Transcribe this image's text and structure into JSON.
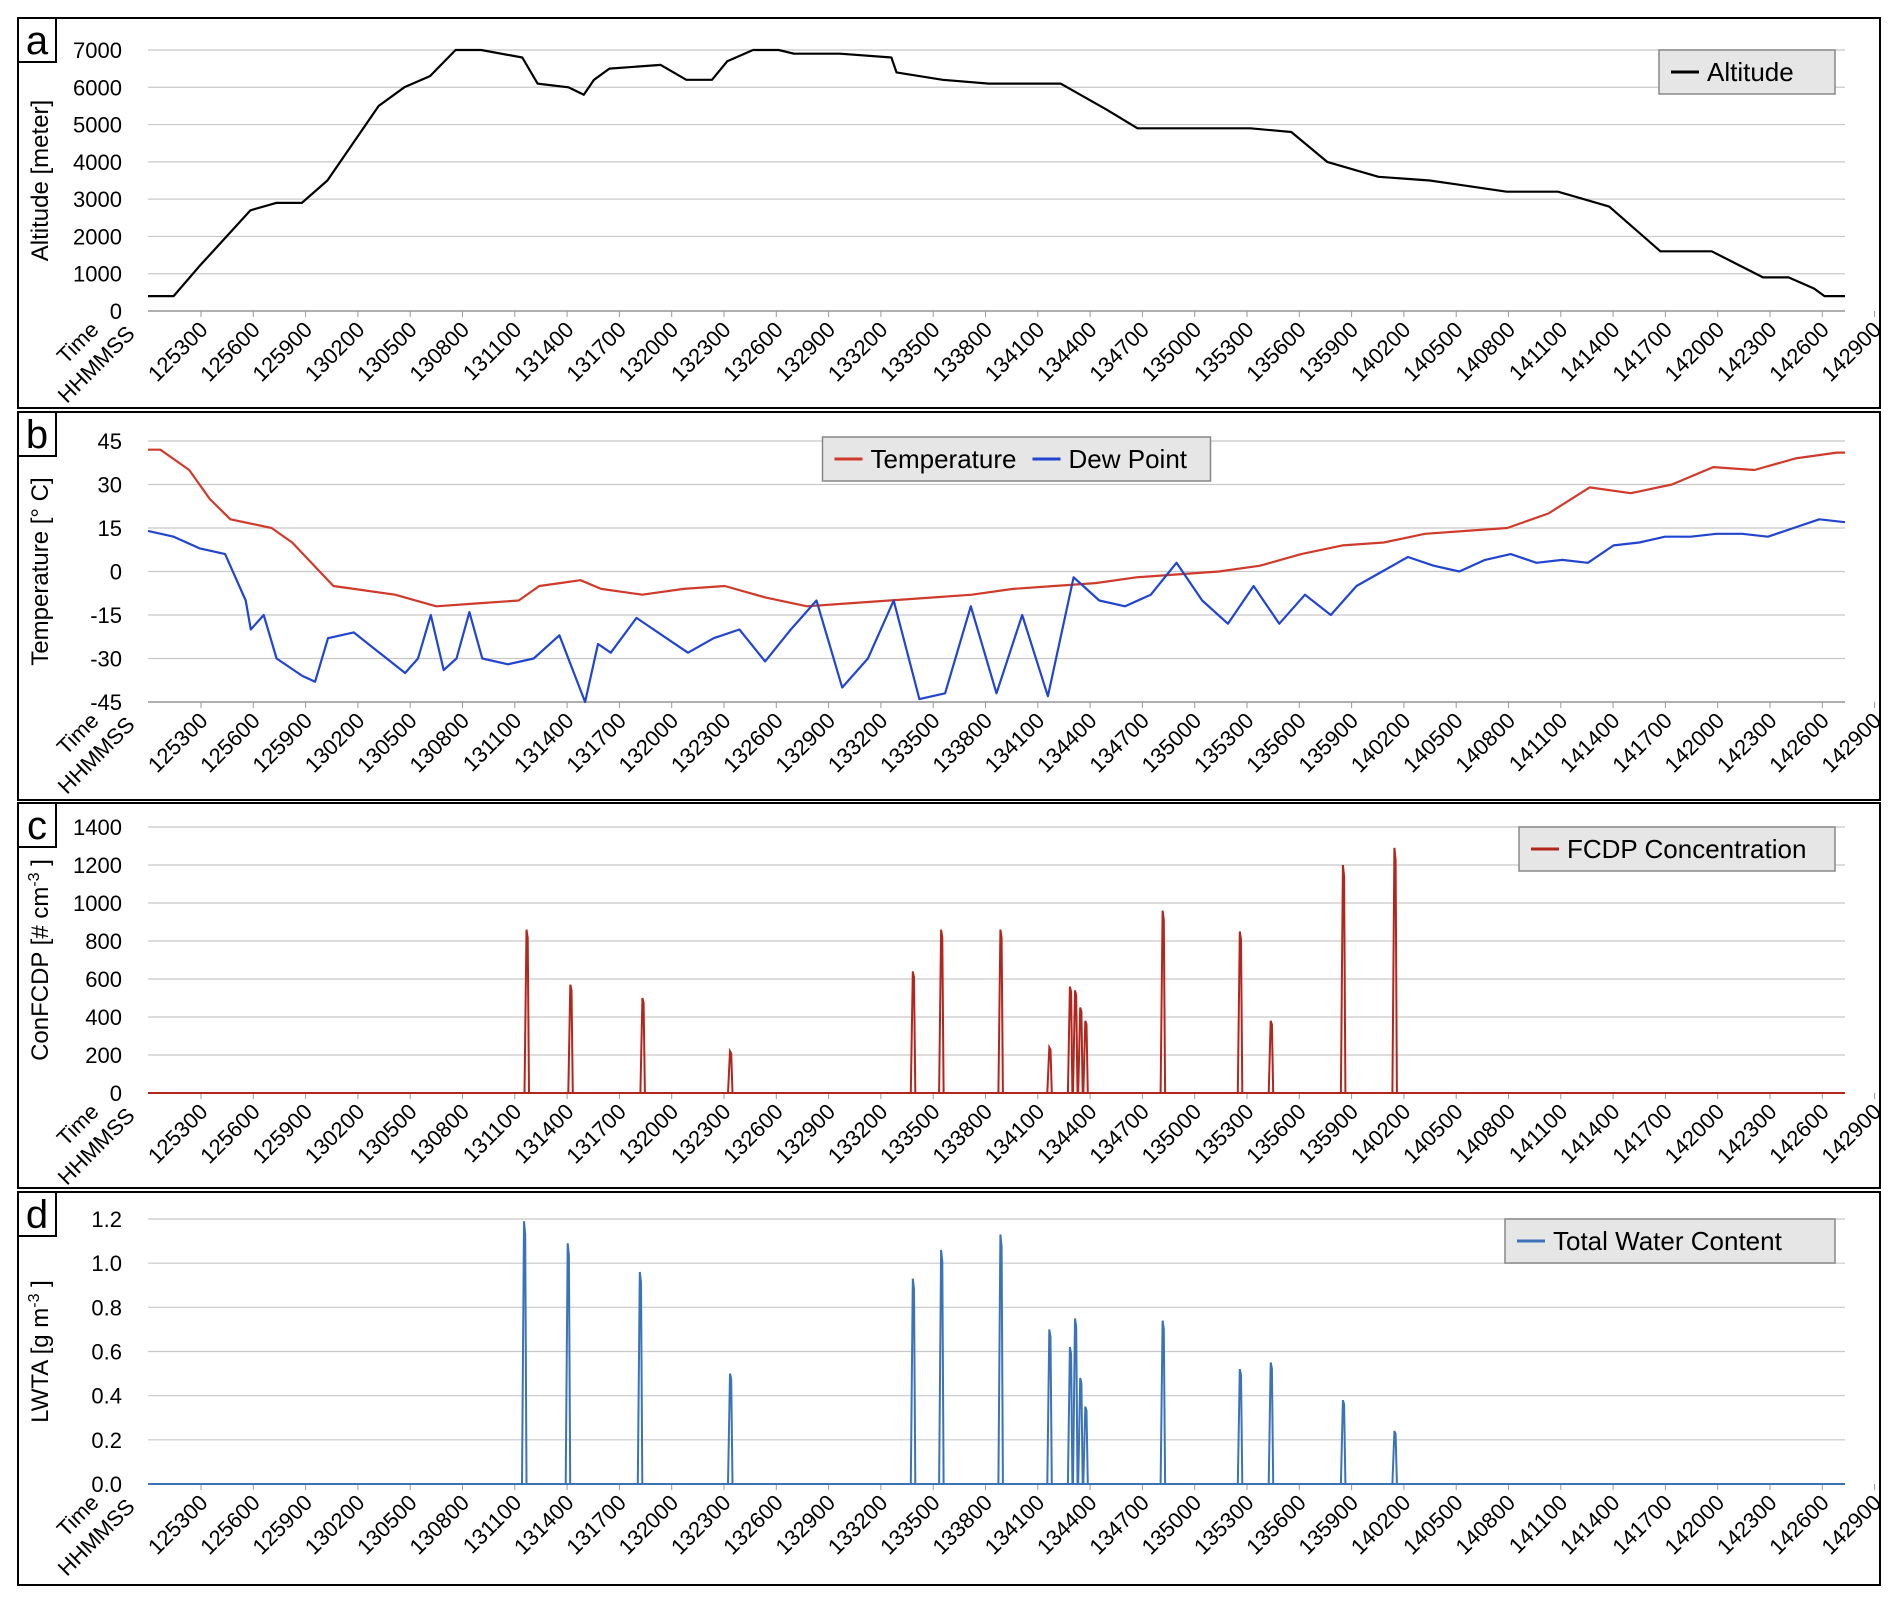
{
  "time_axis": {
    "labels": [
      "125300",
      "125600",
      "125900",
      "130200",
      "130500",
      "130800",
      "131100",
      "131400",
      "131700",
      "132000",
      "132300",
      "132600",
      "132900",
      "133200",
      "133500",
      "133800",
      "134100",
      "134400",
      "134700",
      "135000",
      "135300",
      "135600",
      "135900",
      "140200",
      "140500",
      "140800",
      "141100",
      "141400",
      "141700",
      "142000",
      "142300",
      "142600",
      "142900"
    ],
    "prefix_line1": "Time",
    "prefix_line2": "HHMMSS"
  },
  "panels": [
    {
      "letter": "a",
      "ylabel": "Altitude  [meter]",
      "ylabel_sup": "",
      "ylabel_after": "",
      "legend": [
        "Altitude"
      ]
    },
    {
      "letter": "b",
      "ylabel": "Temperature  [° C]",
      "ylabel_sup": "",
      "ylabel_after": "",
      "legend": [
        "Temperature",
        "Dew Point"
      ]
    },
    {
      "letter": "c",
      "ylabel": "ConFCDP  [# cm",
      "ylabel_sup": "-3",
      "ylabel_after": " ]",
      "legend": [
        "FCDP Concentration"
      ]
    },
    {
      "letter": "d",
      "ylabel": "LWTA  [g m",
      "ylabel_sup": "-3",
      "ylabel_after": " ]",
      "legend": [
        "Total Water Content"
      ]
    }
  ],
  "chart_data": [
    {
      "type": "line",
      "ylabel": "Altitude  [meter]",
      "ylim": [
        0,
        7000
      ],
      "yticks": [
        "0",
        "1000",
        "2000",
        "3000",
        "4000",
        "5000",
        "6000",
        "7000"
      ],
      "grid": true,
      "legend_position": "top-right",
      "series": [
        {
          "name": "Altitude",
          "color": "#000000",
          "points": [
            [
              0,
              400
            ],
            [
              0.5,
              400
            ],
            [
              1,
              1200
            ],
            [
              2,
              2700
            ],
            [
              2.5,
              2900
            ],
            [
              3,
              2900
            ],
            [
              3.5,
              3500
            ],
            [
              4.5,
              5500
            ],
            [
              5,
              6000
            ],
            [
              5.5,
              6300
            ],
            [
              6,
              7000
            ],
            [
              6.5,
              7000
            ],
            [
              7.3,
              6800
            ],
            [
              7.6,
              6100
            ],
            [
              8.2,
              6000
            ],
            [
              8.5,
              5800
            ],
            [
              8.7,
              6200
            ],
            [
              9,
              6500
            ],
            [
              10,
              6600
            ],
            [
              10.5,
              6200
            ],
            [
              11,
              6200
            ],
            [
              11.3,
              6700
            ],
            [
              11.8,
              7000
            ],
            [
              12.3,
              7000
            ],
            [
              12.6,
              6900
            ],
            [
              13.5,
              6900
            ],
            [
              14.5,
              6800
            ],
            [
              14.6,
              6400
            ],
            [
              15.5,
              6200
            ],
            [
              16.4,
              6100
            ],
            [
              17.8,
              6100
            ],
            [
              18.7,
              5400
            ],
            [
              19.3,
              4900
            ],
            [
              21.5,
              4900
            ],
            [
              22.3,
              4800
            ],
            [
              23,
              4000
            ],
            [
              24,
              3600
            ],
            [
              25,
              3500
            ],
            [
              25.5,
              3400
            ],
            [
              26.5,
              3200
            ],
            [
              27.5,
              3200
            ],
            [
              28,
              3000
            ],
            [
              28.5,
              2800
            ],
            [
              29.5,
              1600
            ],
            [
              30.5,
              1600
            ],
            [
              31.5,
              900
            ],
            [
              32,
              900
            ],
            [
              32.5,
              600
            ],
            [
              32.7,
              400
            ],
            [
              33.1,
              400
            ]
          ]
        }
      ]
    },
    {
      "type": "line",
      "ylabel": "Temperature  [° C]",
      "ylim": [
        -45,
        45
      ],
      "yticks": [
        "-45",
        "-30",
        "-15",
        "0",
        "15",
        "30",
        "45"
      ],
      "grid": true,
      "legend_position": "top-center",
      "series": [
        {
          "name": "Temperature",
          "color": "#d03a2a",
          "points": [
            [
              0,
              42
            ],
            [
              0.3,
              42
            ],
            [
              1,
              35
            ],
            [
              1.5,
              25
            ],
            [
              2,
              18
            ],
            [
              3,
              15
            ],
            [
              3.5,
              10
            ],
            [
              4.5,
              -5
            ],
            [
              5,
              -6
            ],
            [
              6,
              -8
            ],
            [
              7,
              -12
            ],
            [
              8,
              -11
            ],
            [
              9,
              -10
            ],
            [
              9.5,
              -5
            ],
            [
              10,
              -4
            ],
            [
              10.5,
              -3
            ],
            [
              11,
              -6
            ],
            [
              12,
              -8
            ],
            [
              13,
              -6
            ],
            [
              14,
              -5
            ],
            [
              15,
              -9
            ],
            [
              16,
              -12
            ],
            [
              17,
              -11
            ],
            [
              18,
              -10
            ],
            [
              19,
              -9
            ],
            [
              20,
              -8
            ],
            [
              21,
              -6
            ],
            [
              22,
              -5
            ],
            [
              23,
              -4
            ],
            [
              24,
              -2
            ],
            [
              25,
              -1
            ],
            [
              26,
              0
            ],
            [
              27,
              2
            ],
            [
              28,
              6
            ],
            [
              29,
              9
            ],
            [
              30,
              10
            ],
            [
              31,
              13
            ],
            [
              32,
              14
            ],
            [
              33,
              15
            ],
            [
              34,
              20
            ],
            [
              35,
              29
            ],
            [
              36,
              27
            ],
            [
              37,
              30
            ],
            [
              38,
              36
            ],
            [
              39,
              35
            ],
            [
              40,
              39
            ],
            [
              41,
              41
            ],
            [
              41.2,
              41
            ]
          ]
        },
        {
          "name": "Dew Point",
          "color": "#2145d0",
          "points": [
            [
              0,
              14
            ],
            [
              1,
              12
            ],
            [
              2,
              8
            ],
            [
              3,
              6
            ],
            [
              3.8,
              -10
            ],
            [
              4,
              -20
            ],
            [
              4.5,
              -15
            ],
            [
              5,
              -30
            ],
            [
              6,
              -36
            ],
            [
              6.5,
              -38
            ],
            [
              7,
              -23
            ],
            [
              8,
              -21
            ],
            [
              9,
              -28
            ],
            [
              10,
              -35
            ],
            [
              10.5,
              -30
            ],
            [
              11,
              -15
            ],
            [
              11.5,
              -34
            ],
            [
              12,
              -30
            ],
            [
              12.5,
              -14
            ],
            [
              13,
              -30
            ],
            [
              14,
              -32
            ],
            [
              15,
              -30
            ],
            [
              16,
              -22
            ],
            [
              17,
              -45
            ],
            [
              17.5,
              -25
            ],
            [
              18,
              -28
            ],
            [
              19,
              -16
            ],
            [
              20,
              -22
            ],
            [
              21,
              -28
            ],
            [
              22,
              -23
            ],
            [
              23,
              -20
            ],
            [
              24,
              -31
            ],
            [
              25,
              -20
            ],
            [
              26,
              -10
            ],
            [
              27,
              -40
            ],
            [
              28,
              -30
            ],
            [
              29,
              -10
            ],
            [
              30,
              -44
            ],
            [
              31,
              -42
            ],
            [
              32,
              -12
            ],
            [
              33,
              -42
            ],
            [
              34,
              -15
            ],
            [
              35,
              -43
            ],
            [
              36,
              -2
            ],
            [
              37,
              -10
            ],
            [
              38,
              -12
            ],
            [
              39,
              -8
            ],
            [
              40,
              3
            ],
            [
              41,
              -10
            ],
            [
              42,
              -18
            ],
            [
              43,
              -5
            ],
            [
              44,
              -18
            ],
            [
              45,
              -8
            ],
            [
              46,
              -15
            ],
            [
              47,
              -5
            ],
            [
              48,
              0
            ],
            [
              49,
              5
            ],
            [
              50,
              2
            ],
            [
              51,
              0
            ],
            [
              52,
              4
            ],
            [
              53,
              6
            ],
            [
              54,
              3
            ],
            [
              55,
              4
            ],
            [
              56,
              3
            ],
            [
              57,
              9
            ],
            [
              58,
              10
            ],
            [
              59,
              12
            ],
            [
              60,
              12
            ],
            [
              61,
              13
            ],
            [
              62,
              13
            ],
            [
              63,
              12
            ],
            [
              64,
              15
            ],
            [
              65,
              18
            ],
            [
              66,
              17
            ]
          ]
        }
      ]
    },
    {
      "type": "line",
      "ylabel": "ConFCDP  [# cm-3 ]",
      "ylim": [
        0,
        1400
      ],
      "yticks": [
        "0",
        "200",
        "400",
        "600",
        "800",
        "1000",
        "1200",
        "1400"
      ],
      "grid": true,
      "legend_position": "top-right",
      "series": [
        {
          "name": "FCDP Concentration",
          "color": "#b3261e",
          "spikes": [
            [
              7.35,
              860
            ],
            [
              8.2,
              570
            ],
            [
              9.6,
              500
            ],
            [
              11.3,
              220
            ],
            [
              14.85,
              640
            ],
            [
              15.4,
              860
            ],
            [
              16.55,
              860
            ],
            [
              17.5,
              240
            ],
            [
              17.9,
              560
            ],
            [
              18.0,
              540
            ],
            [
              18.1,
              450
            ],
            [
              18.2,
              380
            ],
            [
              19.7,
              960
            ],
            [
              21.2,
              850
            ],
            [
              21.8,
              380
            ],
            [
              23.2,
              1200
            ],
            [
              24.2,
              1290
            ]
          ]
        }
      ]
    },
    {
      "type": "line",
      "ylabel": "LWTA  [g m-3 ]",
      "ylim": [
        0,
        1.2
      ],
      "yticks": [
        "0.0",
        "0.2",
        "0.4",
        "0.6",
        "0.8",
        "1.0",
        "1.2"
      ],
      "grid": true,
      "legend_position": "top-right",
      "series": [
        {
          "name": "Total Water Content",
          "color": "#3b73b9",
          "spikes": [
            [
              7.3,
              1.19
            ],
            [
              8.15,
              1.09
            ],
            [
              9.55,
              0.96
            ],
            [
              11.3,
              0.5
            ],
            [
              14.85,
              0.93
            ],
            [
              15.4,
              1.06
            ],
            [
              16.55,
              1.13
            ],
            [
              17.5,
              0.7
            ],
            [
              17.9,
              0.62
            ],
            [
              18.0,
              0.75
            ],
            [
              18.1,
              0.48
            ],
            [
              18.2,
              0.35
            ],
            [
              19.7,
              0.74
            ],
            [
              21.2,
              0.52
            ],
            [
              21.8,
              0.55
            ],
            [
              23.2,
              0.38
            ],
            [
              24.2,
              0.24
            ]
          ]
        }
      ]
    }
  ]
}
